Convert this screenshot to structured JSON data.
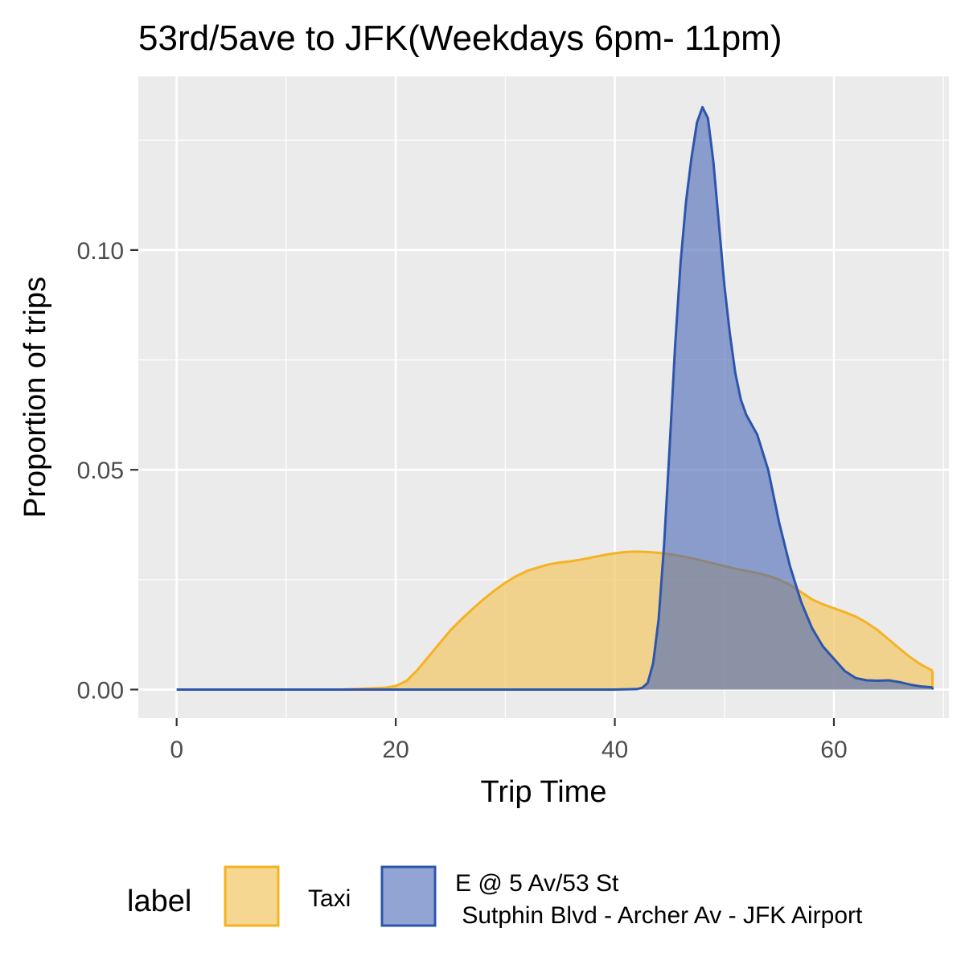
{
  "chart_data": {
    "type": "area",
    "title": "53rd/5ave to JFK(Weekdays 6pm- 11pm)",
    "xlabel": "Trip Time",
    "ylabel": "Proportion of trips",
    "xlim": [
      -3.5,
      70.5
    ],
    "ylim": [
      -0.0065,
      0.1395
    ],
    "x_ticks": [
      0,
      20,
      40,
      60
    ],
    "x_tick_labels": [
      "0",
      "20",
      "40",
      "60"
    ],
    "y_ticks": [
      0,
      0.05,
      0.1
    ],
    "y_tick_labels": [
      "0.00",
      "0.05",
      "0.10"
    ],
    "grid": true,
    "legend": {
      "position": "bottom",
      "title": "label",
      "entries": [
        {
          "label": "Taxi",
          "label_lines": [
            "Taxi"
          ]
        },
        {
          "label": "E @ 5 Av/53 St\n Sutphin Blvd - Archer Av - JFK Airport",
          "label_lines": [
            "E @ 5 Av/53 St",
            " Sutphin Blvd - Archer Av - JFK Airport"
          ]
        }
      ]
    },
    "series": [
      {
        "name": "Taxi",
        "fill": "#F2C96E",
        "fill_opacity": 0.75,
        "stroke": "#F5B223",
        "points": [
          [
            0,
            0
          ],
          [
            15,
            0
          ],
          [
            17,
            0.0002
          ],
          [
            19,
            0.0004
          ],
          [
            20,
            0.0008
          ],
          [
            21,
            0.002
          ],
          [
            22,
            0.0045
          ],
          [
            23,
            0.0075
          ],
          [
            24,
            0.0105
          ],
          [
            25,
            0.0135
          ],
          [
            26,
            0.016
          ],
          [
            27,
            0.0183
          ],
          [
            28,
            0.0205
          ],
          [
            29,
            0.0225
          ],
          [
            30,
            0.0243
          ],
          [
            31,
            0.0258
          ],
          [
            32,
            0.027
          ],
          [
            33,
            0.0278
          ],
          [
            34,
            0.0285
          ],
          [
            35,
            0.0289
          ],
          [
            36,
            0.0292
          ],
          [
            37,
            0.0296
          ],
          [
            38,
            0.0301
          ],
          [
            39,
            0.0306
          ],
          [
            40,
            0.031
          ],
          [
            41,
            0.0313
          ],
          [
            42,
            0.0314
          ],
          [
            43,
            0.0313
          ],
          [
            44,
            0.0311
          ],
          [
            45,
            0.0308
          ],
          [
            46,
            0.0304
          ],
          [
            47,
            0.0299
          ],
          [
            48,
            0.0293
          ],
          [
            49,
            0.0287
          ],
          [
            50,
            0.0281
          ],
          [
            51,
            0.0275
          ],
          [
            52,
            0.027
          ],
          [
            53,
            0.0265
          ],
          [
            54,
            0.0259
          ],
          [
            55,
            0.025
          ],
          [
            56,
            0.0238
          ],
          [
            57,
            0.0222
          ],
          [
            58,
            0.0205
          ],
          [
            59,
            0.0194
          ],
          [
            60,
            0.0185
          ],
          [
            61,
            0.0176
          ],
          [
            62,
            0.0166
          ],
          [
            63,
            0.0152
          ],
          [
            64,
            0.0135
          ],
          [
            65,
            0.0114
          ],
          [
            66,
            0.0093
          ],
          [
            67,
            0.0073
          ],
          [
            68,
            0.0056
          ],
          [
            69,
            0.0043
          ]
        ]
      },
      {
        "name": "E @ 5 Av/53 St\n Sutphin Blvd - Archer Av - JFK Airport",
        "fill": "#4A68B8",
        "fill_opacity": 0.6,
        "stroke": "#2D55AC",
        "points": [
          [
            0,
            0
          ],
          [
            40,
            0
          ],
          [
            42,
            0.0001
          ],
          [
            42.5,
            0.0004
          ],
          [
            43,
            0.0015
          ],
          [
            43.5,
            0.006
          ],
          [
            44,
            0.016
          ],
          [
            44.5,
            0.033
          ],
          [
            45,
            0.055
          ],
          [
            45.5,
            0.078
          ],
          [
            46,
            0.097
          ],
          [
            46.5,
            0.111
          ],
          [
            47,
            0.121
          ],
          [
            47.5,
            0.129
          ],
          [
            48,
            0.1325
          ],
          [
            48.5,
            0.13
          ],
          [
            49,
            0.12
          ],
          [
            49.5,
            0.106
          ],
          [
            50,
            0.092
          ],
          [
            50.5,
            0.081
          ],
          [
            51,
            0.072
          ],
          [
            51.5,
            0.066
          ],
          [
            52,
            0.0625
          ],
          [
            53,
            0.058
          ],
          [
            54,
            0.05
          ],
          [
            55,
            0.038
          ],
          [
            56,
            0.028
          ],
          [
            57,
            0.02
          ],
          [
            58,
            0.014
          ],
          [
            59,
            0.0098
          ],
          [
            60,
            0.007
          ],
          [
            61,
            0.0042
          ],
          [
            62,
            0.0026
          ],
          [
            63,
            0.0021
          ],
          [
            64,
            0.002
          ],
          [
            65,
            0.0021
          ],
          [
            66,
            0.0017
          ],
          [
            67,
            0.0011
          ],
          [
            68,
            0.0007
          ],
          [
            69,
            0.0005
          ]
        ]
      }
    ]
  }
}
